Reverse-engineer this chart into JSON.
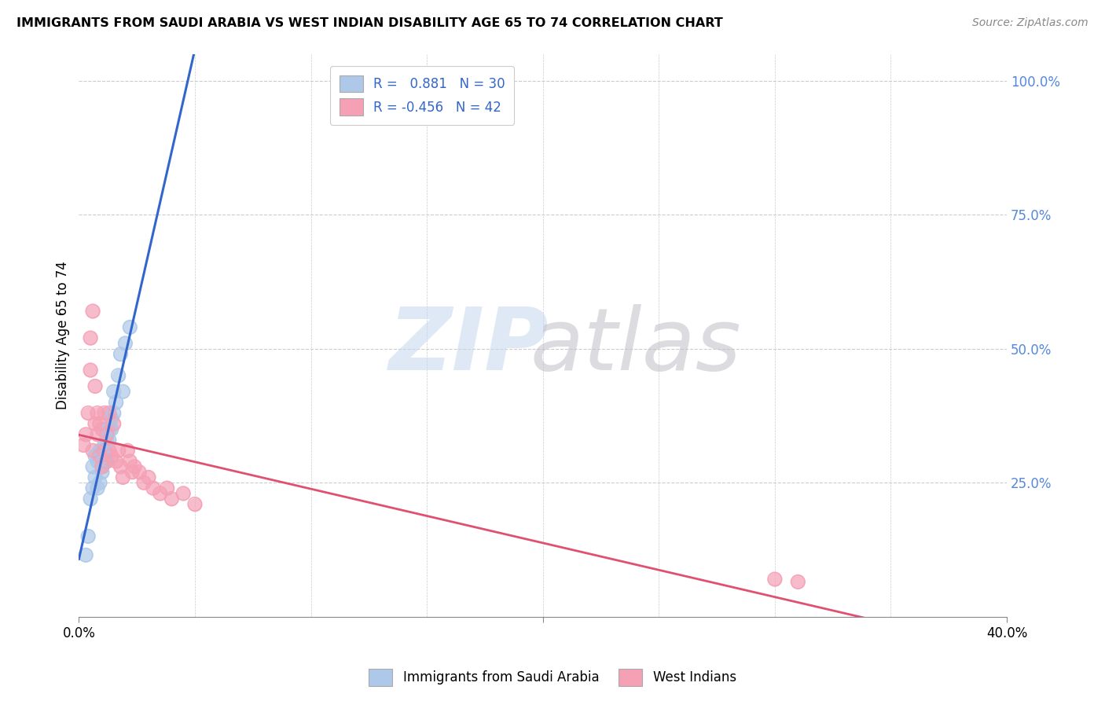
{
  "title": "IMMIGRANTS FROM SAUDI ARABIA VS WEST INDIAN DISABILITY AGE 65 TO 74 CORRELATION CHART",
  "source": "Source: ZipAtlas.com",
  "ylabel": "Disability Age 65 to 74",
  "xlim": [
    0.0,
    0.4
  ],
  "ylim": [
    0.0,
    1.05
  ],
  "saudi_R": 0.881,
  "saudi_N": 30,
  "westindian_R": -0.456,
  "westindian_N": 42,
  "saudi_color": "#adc8e8",
  "westindian_color": "#f5a0b5",
  "saudi_line_color": "#3366cc",
  "westindian_line_color": "#e05070",
  "saudi_x": [
    0.003,
    0.004,
    0.005,
    0.006,
    0.006,
    0.007,
    0.007,
    0.008,
    0.008,
    0.009,
    0.009,
    0.01,
    0.01,
    0.01,
    0.011,
    0.011,
    0.012,
    0.012,
    0.013,
    0.013,
    0.014,
    0.014,
    0.015,
    0.015,
    0.016,
    0.017,
    0.018,
    0.019,
    0.02,
    0.022
  ],
  "saudi_y": [
    0.115,
    0.15,
    0.22,
    0.24,
    0.28,
    0.26,
    0.3,
    0.24,
    0.29,
    0.25,
    0.31,
    0.28,
    0.27,
    0.31,
    0.32,
    0.3,
    0.33,
    0.29,
    0.33,
    0.35,
    0.37,
    0.35,
    0.38,
    0.42,
    0.4,
    0.45,
    0.49,
    0.42,
    0.51,
    0.54
  ],
  "westindian_x": [
    0.002,
    0.003,
    0.004,
    0.005,
    0.005,
    0.006,
    0.006,
    0.007,
    0.007,
    0.008,
    0.008,
    0.009,
    0.009,
    0.01,
    0.01,
    0.011,
    0.011,
    0.012,
    0.012,
    0.013,
    0.013,
    0.014,
    0.015,
    0.016,
    0.017,
    0.018,
    0.019,
    0.021,
    0.022,
    0.023,
    0.024,
    0.026,
    0.028,
    0.03,
    0.032,
    0.035,
    0.038,
    0.04,
    0.045,
    0.05,
    0.3,
    0.31
  ],
  "westindian_y": [
    0.32,
    0.34,
    0.38,
    0.52,
    0.46,
    0.57,
    0.31,
    0.36,
    0.43,
    0.38,
    0.34,
    0.3,
    0.36,
    0.28,
    0.35,
    0.31,
    0.38,
    0.29,
    0.34,
    0.31,
    0.38,
    0.3,
    0.36,
    0.29,
    0.31,
    0.28,
    0.26,
    0.31,
    0.29,
    0.27,
    0.28,
    0.27,
    0.25,
    0.26,
    0.24,
    0.23,
    0.24,
    0.22,
    0.23,
    0.21,
    0.07,
    0.065
  ]
}
